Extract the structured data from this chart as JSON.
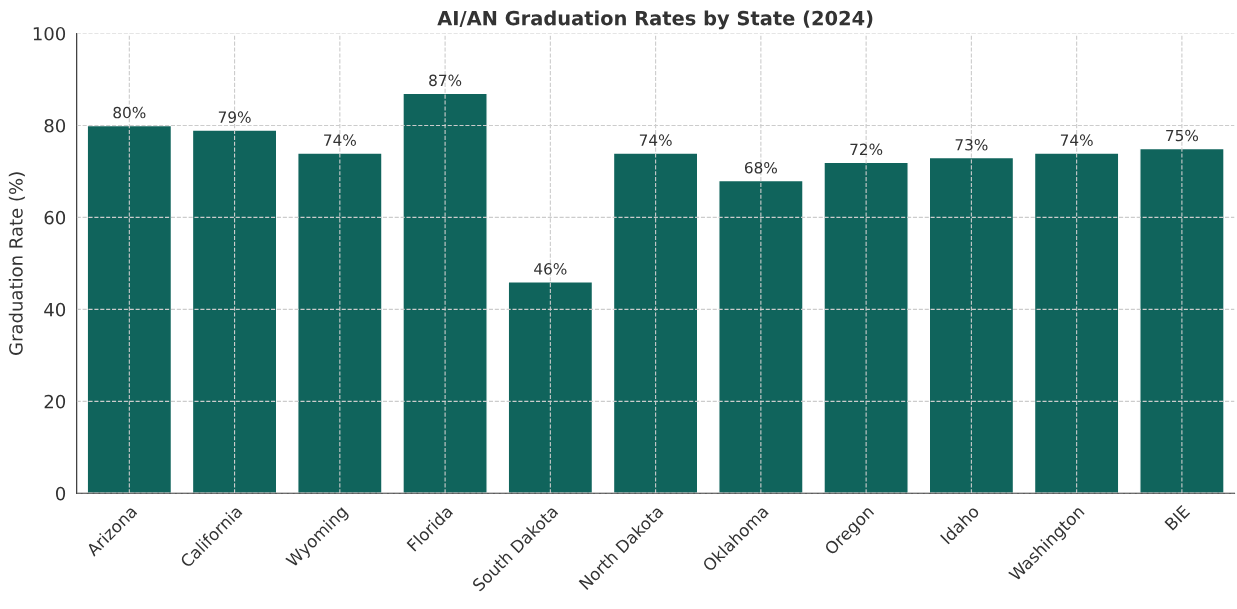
{
  "chart_data": {
    "type": "bar",
    "title": "AI/AN Graduation Rates by State (2024)",
    "ylabel": "Graduation Rate (%)",
    "categories": [
      "Arizona",
      "California",
      "Wyoming",
      "Florida",
      "South Dakota",
      "North Dakota",
      "Oklahoma",
      "Oregon",
      "Idaho",
      "Washington",
      "BIE"
    ],
    "values": [
      80,
      79,
      74,
      87,
      46,
      74,
      68,
      72,
      73,
      74,
      75
    ],
    "value_labels": [
      "80%",
      "79%",
      "74%",
      "87%",
      "46%",
      "74%",
      "68%",
      "72%",
      "73%",
      "74%",
      "75%"
    ],
    "color": "#10645c",
    "ylim": [
      0,
      100
    ],
    "yticks": [
      0,
      20,
      40,
      60,
      80,
      100
    ],
    "grid": true
  }
}
